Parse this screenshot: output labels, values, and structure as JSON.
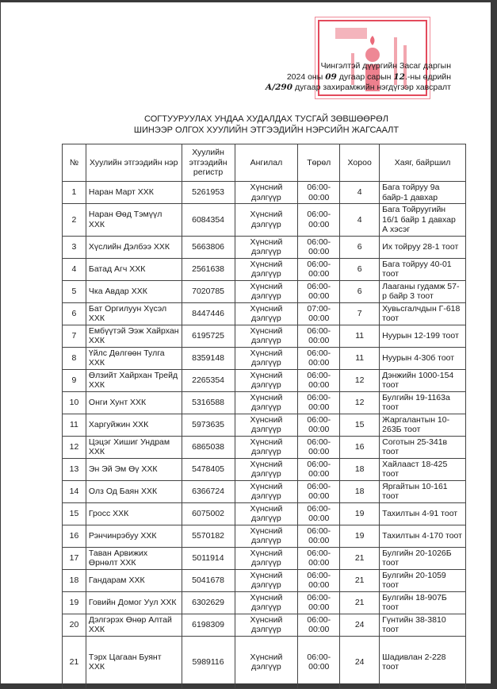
{
  "attachment": {
    "line1": "Чингэлтэй дүүргийн Засаг даргын",
    "line2_pre": "2024 оны",
    "month": "09",
    "line2_mid": "дугаар сарын",
    "day": "12",
    "line2_post": ".-ны өдрийн",
    "order_no": "А/290",
    "line3": "дугаар захирамжийн нэгдүгээр хавсралт"
  },
  "stamp": {
    "color": "#e34a5c",
    "icon": "state-emblem-seal"
  },
  "title": {
    "line1": "СОГТУУРУУЛАХ УНДАА ХУДАЛДАХ ТУСГАЙ ЗӨВШӨӨРӨЛ",
    "line2": "ШИНЭЭР ОЛГОХ ХУУЛИЙН ЭТГЭЭДИЙН НЭРСИЙН ЖАГСААЛТ"
  },
  "table": {
    "headers": [
      "№",
      "Хуулийн этгээдийн нэр",
      "Хуулийн этгээдийн регистр",
      "Ангилал",
      "Төрөл",
      "Хороо",
      "Хаяг, байршил"
    ],
    "rows": [
      [
        "1",
        "Наран Март ХХК",
        "5261953",
        "Хүнсний дэлгүүр",
        "06:00-00:00",
        "4",
        "Бага тойруу 9а байр-1 давхар"
      ],
      [
        "2",
        "Наран Өөд Тэмүүл ХХК",
        "6084354",
        "Хүнсний дэлгүүр",
        "06:00-00:00",
        "4",
        "Бага Тойруугийн 16/1 байр 1 давхар А хэсэг"
      ],
      [
        "3",
        "Хүслийн Дэлбээ ХХК",
        "5663806",
        "Хүнсний дэлгүүр",
        "06:00-00:00",
        "6",
        "Их тойруу 28-1 тоот"
      ],
      [
        "4",
        "Батад Агч ХХК",
        "2561638",
        "Хүнсний дэлгүүр",
        "06:00-00:00",
        "6",
        "Бага тойруу 40-01 тоот"
      ],
      [
        "5",
        "Чка Авдар ХХК",
        "7020785",
        "Хүнсний дэлгүүр",
        "06:00-00:00",
        "6",
        "Лааганы гудамж 57-р байр 3 тоот"
      ],
      [
        "6",
        "Бат Оргилуун Хүсэл ХХК",
        "8447446",
        "Хүнсний дэлгүүр",
        "07:00-00:00",
        "7",
        "Хувьсгалчдын Г-618 тоот"
      ],
      [
        "7",
        "Ембүүтэй Ээж Хайрхан ХХК",
        "6195725",
        "Хүнсний дэлгүүр",
        "06:00-00:00",
        "11",
        "Нуурын 12-199 тоот"
      ],
      [
        "8",
        "Үйлс Дөлгөөн Тулга ХХК",
        "8359148",
        "Хүнсний дэлгүүр",
        "06:00-00:00",
        "11",
        "Нуурын 4-30б тоот"
      ],
      [
        "9",
        "Өлзийт Хайрхан Трейд ХХК",
        "2265354",
        "Хүнсний дэлгүүр",
        "06:00-00:00",
        "12",
        "Дэнжийн 1000-154 тоот"
      ],
      [
        "10",
        "Онги Хунт ХХК",
        "5316588",
        "Хүнсний дэлгүүр",
        "06:00-00:00",
        "12",
        "Булгийн 19-1163а тоот"
      ],
      [
        "11",
        "Харгуйжин ХХК",
        "5973635",
        "Хүнсний дэлгүүр",
        "06:00-00:00",
        "15",
        "Жаргалантын 10-263Б тоот"
      ],
      [
        "12",
        "Цэцэг Хишиг Ундрам ХХК",
        "6865038",
        "Хүнсний дэлгүүр",
        "06:00-00:00",
        "16",
        "Соготын 25-341в тоот"
      ],
      [
        "13",
        "Эн Эй Эм Өү ХХК",
        "5478405",
        "Хүнсний дэлгүүр",
        "06:00-00:00",
        "18",
        "Хайлааст 18-425 тоот"
      ],
      [
        "14",
        "Олз Од Баян ХХК",
        "6366724",
        "Хүнсний дэлгүүр",
        "06:00-00:00",
        "18",
        "Яргайтын 10-161 тоот"
      ],
      [
        "15",
        "Гросс ХХК",
        "6075002",
        "Хүнсний дэлгүүр",
        "06:00-00:00",
        "19",
        "Тахилтын 4-91 тоот"
      ],
      [
        "16",
        "Рэнчинрэбуу ХХК",
        "5570182",
        "Хүнсний дэлгүүр",
        "06:00-00:00",
        "19",
        "Тахилтын 4-170 тоот"
      ],
      [
        "17",
        "Таван Арвижих Өрнөлт ХХК",
        "5011914",
        "Хүнсний дэлгүүр",
        "06:00-00:00",
        "21",
        "Булгийн 20-1026Б тоот"
      ],
      [
        "18",
        "Гандарам ХХК",
        "5041678",
        "Хүнсний дэлгүүр",
        "06:00-00:00",
        "21",
        "Булгийн 20-1059 тоот"
      ],
      [
        "19",
        "Говийн Домог Уул ХХК",
        "6302629",
        "Хүнсний дэлгүүр",
        "06:00-00:00",
        "21",
        "Булгийн 18-907Б тоот"
      ],
      [
        "20",
        "Дэлгэрэх Өнөр Алтай ХХК",
        "6198309",
        "Хүнсний дэлгүүр",
        "06:00-00:00",
        "24",
        "Гүнтийн 38-3810 тоот"
      ],
      [
        "21",
        "Тэрх Цагаан Буянт ХХК",
        "5989116",
        "Хүнсний дэлгүүр",
        "06:00-00:00",
        "24",
        "Шадивлан 2-228 тоот"
      ]
    ]
  }
}
